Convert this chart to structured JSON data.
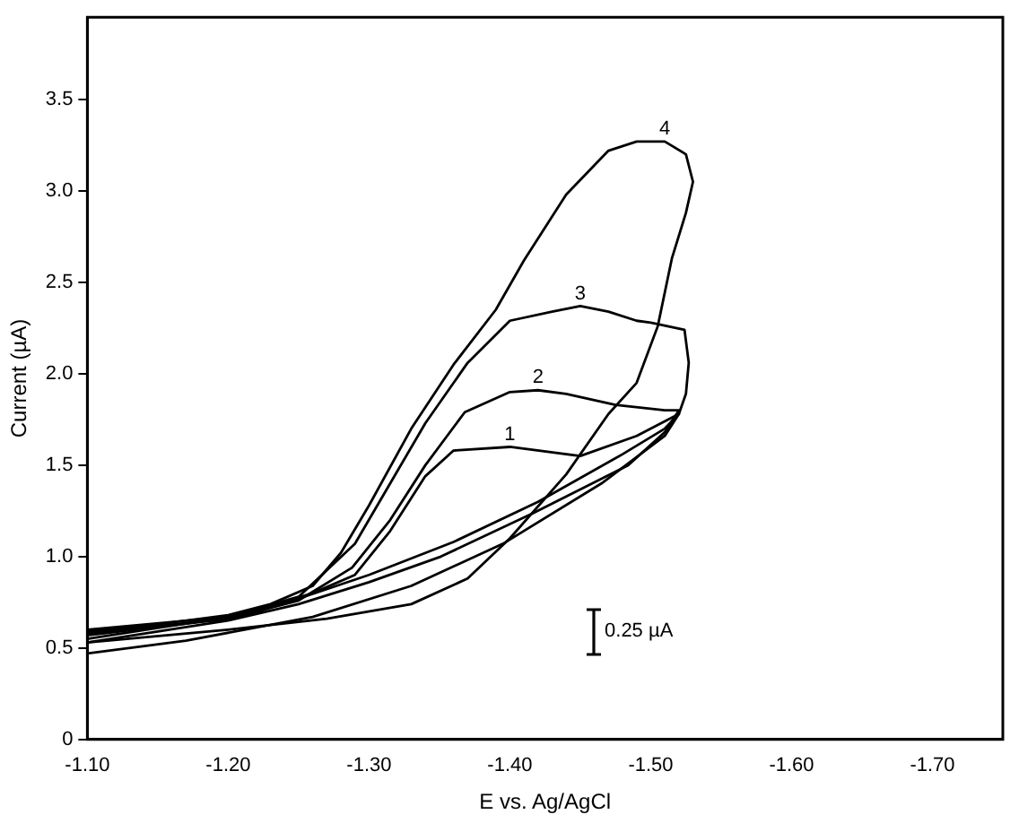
{
  "chart_data": {
    "type": "line",
    "xlabel": "E vs. Ag/AgCl",
    "ylabel": "Current (µA)",
    "xlim": [
      -1.1,
      -1.75
    ],
    "xticks": [
      {
        "value": -1.1,
        "label": "-1.10"
      },
      {
        "value": -1.2,
        "label": "-1.20"
      },
      {
        "value": -1.3,
        "label": "-1.30"
      },
      {
        "value": -1.4,
        "label": "-1.40"
      },
      {
        "value": -1.5,
        "label": "-1.50"
      },
      {
        "value": -1.6,
        "label": "-1.60"
      },
      {
        "value": -1.7,
        "label": "-1.70"
      }
    ],
    "ylim": [
      0,
      3.95
    ],
    "yticks": [
      0,
      0.5,
      {
        "value": 1,
        "label": "1.0"
      },
      1.5,
      {
        "value": 2,
        "label": "2.0"
      },
      2.5,
      {
        "value": 3,
        "label": "3.0"
      },
      3.5
    ],
    "series": [
      {
        "name": "1",
        "color": "#000000",
        "x": [
          -1.1,
          -1.2,
          -1.26,
          -1.29,
          -1.315,
          -1.34,
          -1.36,
          -1.4,
          -1.45,
          -1.49,
          -1.52,
          -1.51,
          -1.465,
          -1.395,
          -1.33,
          -1.26,
          -1.17,
          -1.1
        ],
        "values": [
          0.57,
          0.66,
          0.8,
          0.9,
          1.14,
          1.44,
          1.58,
          1.6,
          1.55,
          1.66,
          1.78,
          1.66,
          1.4,
          1.07,
          0.84,
          0.67,
          0.54,
          0.47
        ]
      },
      {
        "name": "2",
        "color": "#000000",
        "x": [
          -1.1,
          -1.2,
          -1.25,
          -1.288,
          -1.315,
          -1.34,
          -1.368,
          -1.4,
          -1.42,
          -1.44,
          -1.475,
          -1.51,
          -1.52,
          -1.51,
          -1.484,
          -1.417,
          -1.351,
          -1.3,
          -1.25,
          -1.2,
          -1.1
        ],
        "values": [
          0.58,
          0.66,
          0.76,
          0.94,
          1.2,
          1.5,
          1.79,
          1.9,
          1.91,
          1.89,
          1.83,
          1.8,
          1.8,
          1.68,
          1.5,
          1.24,
          1.0,
          0.86,
          0.74,
          0.65,
          0.53
        ]
      },
      {
        "name": "3",
        "color": "#000000",
        "x": [
          -1.1,
          -1.2,
          -1.25,
          -1.29,
          -1.315,
          -1.34,
          -1.37,
          -1.4,
          -1.43,
          -1.45,
          -1.47,
          -1.49,
          -1.5,
          -1.524,
          -1.527,
          -1.525,
          -1.52,
          -1.51,
          -1.48,
          -1.42,
          -1.36,
          -1.3,
          -1.25,
          -1.2,
          -1.1
        ],
        "values": [
          0.55,
          0.67,
          0.78,
          1.07,
          1.4,
          1.73,
          2.06,
          2.29,
          2.34,
          2.37,
          2.34,
          2.29,
          2.28,
          2.24,
          2.06,
          1.89,
          1.78,
          1.7,
          1.56,
          1.3,
          1.08,
          0.9,
          0.77,
          0.67,
          0.6
        ]
      },
      {
        "name": "4",
        "color": "#000000",
        "x": [
          -1.1,
          -1.15,
          -1.2,
          -1.23,
          -1.26,
          -1.28,
          -1.3,
          -1.33,
          -1.36,
          -1.39,
          -1.41,
          -1.44,
          -1.47,
          -1.49,
          -1.51,
          -1.525,
          -1.53,
          -1.525,
          -1.515,
          -1.505,
          -1.49,
          -1.47,
          -1.44,
          -1.4,
          -1.37,
          -1.33,
          -1.27,
          -1.2,
          -1.1
        ],
        "values": [
          0.59,
          0.63,
          0.68,
          0.74,
          0.84,
          1.02,
          1.28,
          1.7,
          2.05,
          2.35,
          2.62,
          2.98,
          3.22,
          3.27,
          3.27,
          3.2,
          3.05,
          2.88,
          2.63,
          2.26,
          1.95,
          1.78,
          1.45,
          1.1,
          0.88,
          0.74,
          0.66,
          0.6,
          0.53
        ]
      }
    ],
    "annotations": [
      "0.25 µA"
    ]
  }
}
